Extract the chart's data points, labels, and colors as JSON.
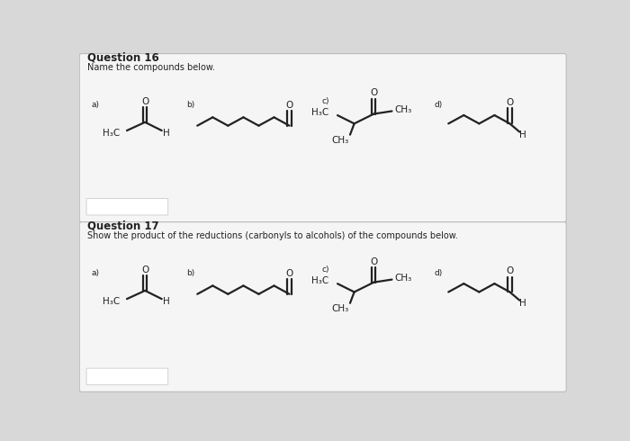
{
  "bg_color": "#d8d8d8",
  "section_bg": "#f5f5f5",
  "white_box_color": "#eeeeee",
  "line_color": "#222222",
  "text_color": "#222222",
  "q16_title": "Question 16",
  "q16_subtitle": "Name the compounds below.",
  "q17_title": "Question 17",
  "q17_subtitle": "Show the product of the reductions (carbonyls to alcohols) of the compounds below.",
  "lw": 1.6,
  "font_size_title": 8.5,
  "font_size_sub": 7.0,
  "font_size_label": 6.5,
  "font_size_atom": 7.5,
  "seg_b": 22,
  "seg_d": 22
}
